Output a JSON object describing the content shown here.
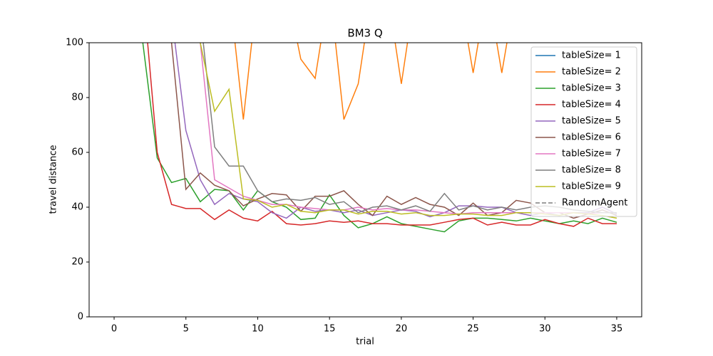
{
  "chart_data": {
    "type": "line",
    "title": "BM3  Q",
    "x_label": "trial",
    "y_label": "travel distance",
    "x": [
      0,
      1,
      2,
      3,
      4,
      5,
      6,
      7,
      8,
      9,
      10,
      11,
      12,
      13,
      14,
      15,
      16,
      17,
      18,
      19,
      20,
      21,
      22,
      23,
      24,
      25,
      26,
      27,
      28,
      29,
      30,
      31,
      32,
      33,
      34,
      35
    ],
    "xlim": [
      -1.74,
      36.74
    ],
    "xticks": [
      0,
      5,
      10,
      15,
      20,
      25,
      30,
      35
    ],
    "ylim": [
      0,
      100
    ],
    "yticks": [
      0,
      20,
      40,
      60,
      80,
      100
    ],
    "legend": "upper right",
    "series": [
      {
        "name": "tableSize= 1",
        "color": "#1f77b4",
        "values": [
          null,
          null,
          null,
          null,
          null,
          null,
          null,
          null,
          null,
          null,
          null,
          null,
          null,
          null,
          null,
          null,
          null,
          null,
          null,
          null,
          null,
          null,
          null,
          null,
          null,
          null,
          null,
          null,
          null,
          null,
          null,
          null,
          null,
          null,
          null,
          null
        ]
      },
      {
        "name": "tableSize= 2",
        "color": "#ff7f0e",
        "values": [
          null,
          null,
          null,
          null,
          null,
          null,
          null,
          null,
          120,
          72,
          120,
          null,
          120,
          94,
          87,
          120,
          72,
          85,
          120,
          120,
          85,
          120,
          null,
          null,
          120,
          89,
          120,
          89,
          120,
          null,
          null,
          null,
          null,
          null,
          null,
          null
        ]
      },
      {
        "name": "tableSize= 3",
        "color": "#2ca02c",
        "values": [
          null,
          null,
          100,
          58,
          49,
          50.5,
          42,
          46.5,
          46,
          39,
          46,
          42,
          40,
          35.5,
          36,
          44.5,
          37,
          32.5,
          34,
          36.5,
          34,
          33,
          32,
          31,
          35,
          36,
          36,
          35.5,
          35,
          36,
          35,
          34,
          35,
          34,
          36,
          34.5
        ]
      },
      {
        "name": "tableSize= 4",
        "color": "#d62728",
        "values": [
          null,
          null,
          120,
          60,
          41,
          39.5,
          39.5,
          35.5,
          39,
          36,
          35,
          38.5,
          34,
          33.5,
          34,
          35,
          34.5,
          35,
          34,
          34,
          33.5,
          33.5,
          33.5,
          34.5,
          35.5,
          36,
          33.5,
          34.5,
          33.5,
          33.5,
          35.5,
          34,
          33,
          36,
          34,
          34
        ]
      },
      {
        "name": "tableSize= 5",
        "color": "#9467bd",
        "values": [
          null,
          null,
          null,
          null,
          110,
          68,
          50,
          41,
          45,
          43,
          42,
          38,
          36,
          40,
          38.5,
          39,
          38,
          39,
          37,
          38,
          39,
          38.5,
          36.5,
          38,
          40.5,
          40.5,
          40,
          40,
          38,
          37,
          38,
          37,
          38,
          38,
          40,
          37.5
        ]
      },
      {
        "name": "tableSize= 6",
        "color": "#8c564b",
        "values": [
          null,
          null,
          null,
          null,
          100,
          46.5,
          52.5,
          48,
          46,
          40.5,
          43,
          45,
          44.5,
          38.5,
          44,
          44,
          46,
          41,
          37,
          44,
          41,
          43.5,
          41,
          40,
          37,
          41.5,
          37,
          38,
          42.5,
          41.5,
          38,
          38,
          36,
          37.5,
          39,
          37
        ]
      },
      {
        "name": "tableSize= 7",
        "color": "#e377c2",
        "values": [
          null,
          null,
          null,
          null,
          null,
          null,
          100,
          50,
          47,
          44,
          42.5,
          41,
          41,
          40,
          39.5,
          39,
          39,
          40,
          39,
          39.5,
          39,
          39,
          38.5,
          38,
          37.5,
          38,
          38,
          38,
          38,
          38,
          38,
          38,
          38,
          37.5,
          38,
          38
        ]
      },
      {
        "name": "tableSize= 8",
        "color": "#7f7f7f",
        "values": [
          null,
          null,
          null,
          null,
          null,
          null,
          110,
          62,
          55,
          55,
          46,
          42,
          43,
          42.5,
          43.5,
          41,
          42,
          38,
          40,
          40.5,
          39,
          40.5,
          38.5,
          45,
          39,
          40.5,
          39,
          40,
          39,
          40,
          40.5,
          40,
          39,
          38.5,
          38,
          38
        ]
      },
      {
        "name": "tableSize= 9",
        "color": "#bcbd22",
        "values": [
          null,
          null,
          null,
          null,
          null,
          null,
          100,
          75,
          83,
          43,
          42.5,
          40,
          41,
          38.5,
          38,
          39,
          39,
          37.5,
          38.5,
          38.5,
          37.5,
          38,
          37,
          37,
          37.5,
          37.5,
          37,
          37,
          38,
          38,
          37.5,
          37,
          38,
          37.5,
          37,
          36
        ]
      },
      {
        "name": "RandomAgent",
        "color": "#7f7f7f",
        "dashed": true,
        "values": [
          null,
          null,
          null,
          null,
          null,
          null,
          null,
          null,
          null,
          null,
          null,
          null,
          null,
          null,
          null,
          null,
          null,
          null,
          null,
          null,
          null,
          null,
          null,
          null,
          null,
          null,
          null,
          null,
          null,
          null,
          null,
          null,
          null,
          null,
          null,
          null
        ]
      }
    ]
  }
}
